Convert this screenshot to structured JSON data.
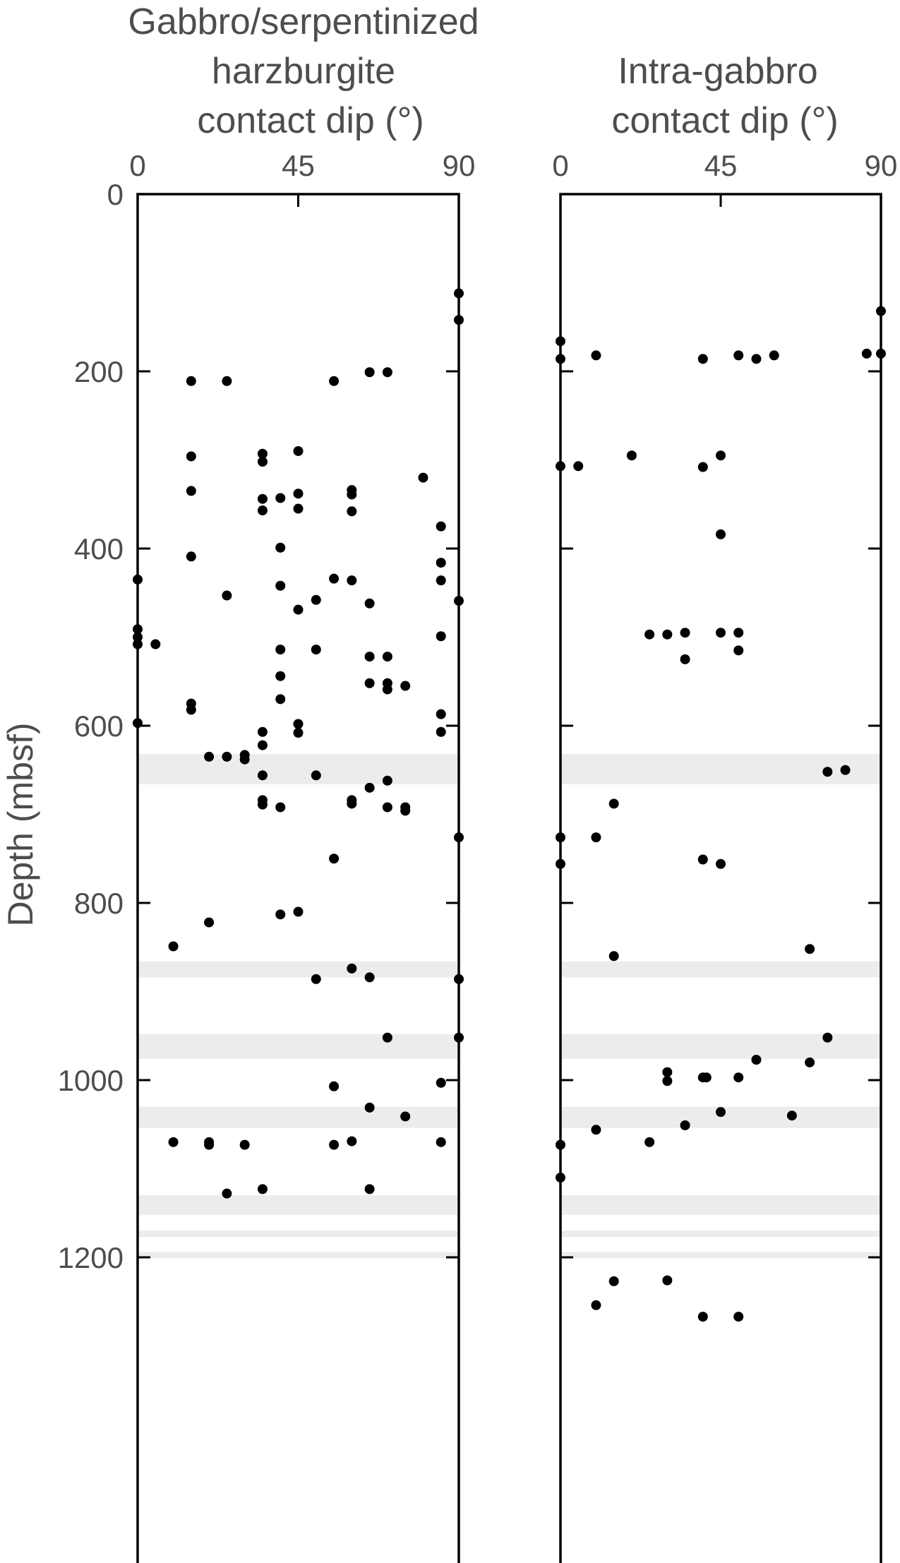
{
  "chart_data": {
    "type": "scatter",
    "ylabel": "Depth (mbsf)",
    "ylim": [
      0,
      1300
    ],
    "y_ticks": [
      "0",
      "200",
      "400",
      "600",
      "800",
      "1000",
      "1200"
    ],
    "y_tick_values": [
      0,
      200,
      400,
      600,
      800,
      1000,
      1200
    ],
    "y_inverted": true,
    "shaded_bands_color": "#ececec",
    "marker_color": "#000000",
    "shaded_bands": [
      [
        632,
        666
      ],
      [
        866,
        884
      ],
      [
        948,
        976
      ],
      [
        1030,
        1054
      ],
      [
        1130,
        1152
      ],
      [
        1170,
        1177
      ],
      [
        1194,
        1201
      ]
    ],
    "panels": [
      {
        "title_lines": [
          "Gabbro/serpentinized",
          "harzburgite",
          "contact dip (°)"
        ],
        "xlim": [
          0,
          90
        ],
        "x_ticks": [
          "0",
          "45",
          "90"
        ],
        "x_tick_values": [
          0,
          45,
          90
        ],
        "points": [
          [
            90,
            112
          ],
          [
            90,
            142
          ],
          [
            70,
            201
          ],
          [
            65,
            201
          ],
          [
            15,
            211
          ],
          [
            25,
            211
          ],
          [
            55,
            211
          ],
          [
            15,
            296
          ],
          [
            35,
            293
          ],
          [
            45,
            290
          ],
          [
            35,
            302
          ],
          [
            80,
            320
          ],
          [
            15,
            335
          ],
          [
            60,
            334
          ],
          [
            45,
            338
          ],
          [
            60,
            339
          ],
          [
            35,
            344
          ],
          [
            40,
            343
          ],
          [
            45,
            355
          ],
          [
            35,
            357
          ],
          [
            60,
            358
          ],
          [
            85,
            375
          ],
          [
            40,
            399
          ],
          [
            15,
            409
          ],
          [
            85,
            416
          ],
          [
            0,
            435
          ],
          [
            55,
            434
          ],
          [
            60,
            436
          ],
          [
            85,
            436
          ],
          [
            40,
            442
          ],
          [
            25,
            453
          ],
          [
            50,
            458
          ],
          [
            65,
            462
          ],
          [
            90,
            459
          ],
          [
            45,
            469
          ],
          [
            0,
            491
          ],
          [
            85,
            499
          ],
          [
            0,
            500
          ],
          [
            0,
            508
          ],
          [
            5,
            508
          ],
          [
            40,
            514
          ],
          [
            50,
            514
          ],
          [
            65,
            522
          ],
          [
            70,
            522
          ],
          [
            40,
            544
          ],
          [
            65,
            552
          ],
          [
            70,
            552
          ],
          [
            75,
            555
          ],
          [
            70,
            559
          ],
          [
            40,
            570
          ],
          [
            15,
            575
          ],
          [
            15,
            582
          ],
          [
            85,
            587
          ],
          [
            0,
            597
          ],
          [
            45,
            598
          ],
          [
            35,
            607
          ],
          [
            45,
            608
          ],
          [
            85,
            607
          ],
          [
            35,
            622
          ],
          [
            30,
            633
          ],
          [
            20,
            635
          ],
          [
            25,
            635
          ],
          [
            30,
            638
          ],
          [
            35,
            656
          ],
          [
            50,
            656
          ],
          [
            70,
            662
          ],
          [
            65,
            670
          ],
          [
            35,
            684
          ],
          [
            60,
            684
          ],
          [
            35,
            689
          ],
          [
            60,
            688
          ],
          [
            40,
            692
          ],
          [
            70,
            692
          ],
          [
            75,
            692
          ],
          [
            75,
            696
          ],
          [
            90,
            726
          ],
          [
            55,
            750
          ],
          [
            45,
            810
          ],
          [
            40,
            813
          ],
          [
            20,
            822
          ],
          [
            10,
            849
          ],
          [
            60,
            874
          ],
          [
            50,
            886
          ],
          [
            65,
            884
          ],
          [
            90,
            886
          ],
          [
            70,
            952
          ],
          [
            90,
            952
          ],
          [
            85,
            1003
          ],
          [
            55,
            1007
          ],
          [
            65,
            1031
          ],
          [
            75,
            1041
          ],
          [
            10,
            1070
          ],
          [
            20,
            1070
          ],
          [
            60,
            1069
          ],
          [
            85,
            1070
          ],
          [
            20,
            1073
          ],
          [
            30,
            1073
          ],
          [
            55,
            1073
          ],
          [
            65,
            1123
          ],
          [
            35,
            1123
          ],
          [
            25,
            1128
          ]
        ]
      },
      {
        "title_lines": [
          "Intra-gabbro",
          "contact dip (°)"
        ],
        "xlim": [
          0,
          90
        ],
        "x_ticks": [
          "0",
          "45",
          "90"
        ],
        "x_tick_values": [
          0,
          45,
          90
        ],
        "points": [
          [
            90,
            132
          ],
          [
            0,
            166
          ],
          [
            10,
            182
          ],
          [
            50,
            182
          ],
          [
            60,
            182
          ],
          [
            86,
            180
          ],
          [
            90,
            180
          ],
          [
            0,
            186
          ],
          [
            40,
            186
          ],
          [
            55,
            186
          ],
          [
            20,
            295
          ],
          [
            45,
            295
          ],
          [
            0,
            307
          ],
          [
            5,
            307
          ],
          [
            40,
            308
          ],
          [
            45,
            384
          ],
          [
            25,
            497
          ],
          [
            30,
            497
          ],
          [
            35,
            495
          ],
          [
            45,
            495
          ],
          [
            50,
            495
          ],
          [
            35,
            525
          ],
          [
            50,
            515
          ],
          [
            75,
            652
          ],
          [
            80,
            650
          ],
          [
            15,
            688
          ],
          [
            0,
            726
          ],
          [
            10,
            726
          ],
          [
            40,
            751
          ],
          [
            0,
            756
          ],
          [
            45,
            756
          ],
          [
            70,
            852
          ],
          [
            15,
            860
          ],
          [
            75,
            952
          ],
          [
            55,
            977
          ],
          [
            70,
            980
          ],
          [
            30,
            991
          ],
          [
            30,
            1001
          ],
          [
            40,
            997
          ],
          [
            41,
            997
          ],
          [
            50,
            997
          ],
          [
            45,
            1036
          ],
          [
            65,
            1040
          ],
          [
            10,
            1056
          ],
          [
            35,
            1051
          ],
          [
            25,
            1070
          ],
          [
            0,
            1073
          ],
          [
            0,
            1110
          ],
          [
            15,
            1227
          ],
          [
            30,
            1226
          ],
          [
            10,
            1254
          ],
          [
            40,
            1267
          ],
          [
            50,
            1267
          ]
        ]
      }
    ]
  }
}
